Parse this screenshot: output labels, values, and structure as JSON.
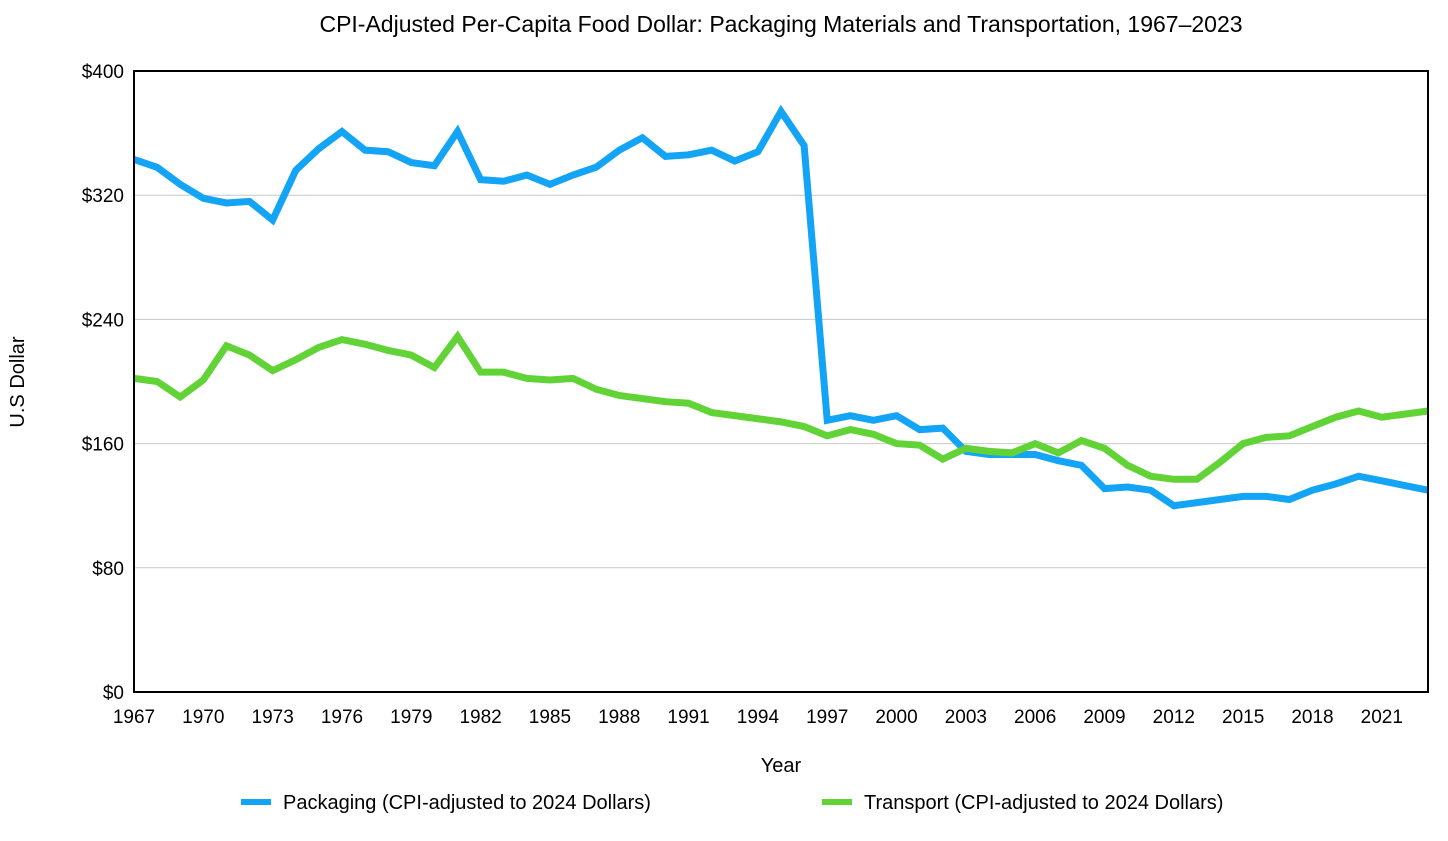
{
  "chart_data": {
    "type": "line",
    "title": "CPI-Adjusted Per-Capita Food Dollar: Packaging Materials and Transportation, 1967–2023",
    "xlabel": "Year",
    "ylabel": "U.S Dollar",
    "ylim": [
      0,
      400
    ],
    "xlim": [
      1967,
      2023
    ],
    "grid": true,
    "legend_position": "bottom",
    "y_ticks": [
      0,
      80,
      160,
      240,
      320,
      400
    ],
    "y_tick_labels": [
      "$0",
      "$80",
      "$160",
      "$240",
      "$320",
      "$400"
    ],
    "x_ticks": [
      1967,
      1970,
      1973,
      1976,
      1979,
      1982,
      1985,
      1988,
      1991,
      1994,
      1997,
      2000,
      2003,
      2006,
      2009,
      2012,
      2015,
      2018,
      2021
    ],
    "x_tick_labels": [
      "1967",
      "1970",
      "1973",
      "1976",
      "1979",
      "1982",
      "1985",
      "1988",
      "1991",
      "1994",
      "1997",
      "2000",
      "2003",
      "2006",
      "2009",
      "2012",
      "2015",
      "2018",
      "2021"
    ],
    "x": [
      1967,
      1968,
      1969,
      1970,
      1971,
      1972,
      1973,
      1974,
      1975,
      1976,
      1977,
      1978,
      1979,
      1980,
      1981,
      1982,
      1983,
      1984,
      1985,
      1986,
      1987,
      1988,
      1989,
      1990,
      1991,
      1992,
      1993,
      1994,
      1995,
      1996,
      1997,
      1998,
      1999,
      2000,
      2001,
      2002,
      2003,
      2004,
      2005,
      2006,
      2007,
      2008,
      2009,
      2010,
      2011,
      2012,
      2013,
      2014,
      2015,
      2016,
      2017,
      2018,
      2019,
      2020,
      2021,
      2022,
      2023
    ],
    "series": [
      {
        "name": "Packaging (CPI-adjusted to 2024 Dollars)",
        "color": "#14A4F5",
        "values": [
          343,
          338,
          327,
          318,
          315,
          316,
          304,
          336,
          350,
          361,
          349,
          348,
          341,
          339,
          361,
          330,
          329,
          333,
          327,
          333,
          338,
          349,
          357,
          345,
          346,
          349,
          342,
          348,
          374,
          352,
          175,
          178,
          175,
          178,
          169,
          170,
          155,
          153,
          153,
          153,
          149,
          146,
          131,
          132,
          130,
          120,
          122,
          124,
          126,
          126,
          124,
          130,
          134,
          139,
          136,
          133,
          130
        ]
      },
      {
        "name": "Transport (CPI-adjusted to 2024 Dollars)",
        "color": "#62D337",
        "values": [
          202,
          200,
          190,
          201,
          223,
          217,
          207,
          214,
          222,
          227,
          224,
          220,
          217,
          209,
          229,
          206,
          206,
          202,
          201,
          202,
          195,
          191,
          189,
          187,
          186,
          180,
          178,
          176,
          174,
          171,
          165,
          169,
          166,
          160,
          159,
          150,
          157,
          155,
          154,
          160,
          154,
          162,
          157,
          146,
          139,
          137,
          137,
          148,
          160,
          164,
          165,
          171,
          177,
          181,
          177,
          179,
          181
        ]
      }
    ]
  }
}
